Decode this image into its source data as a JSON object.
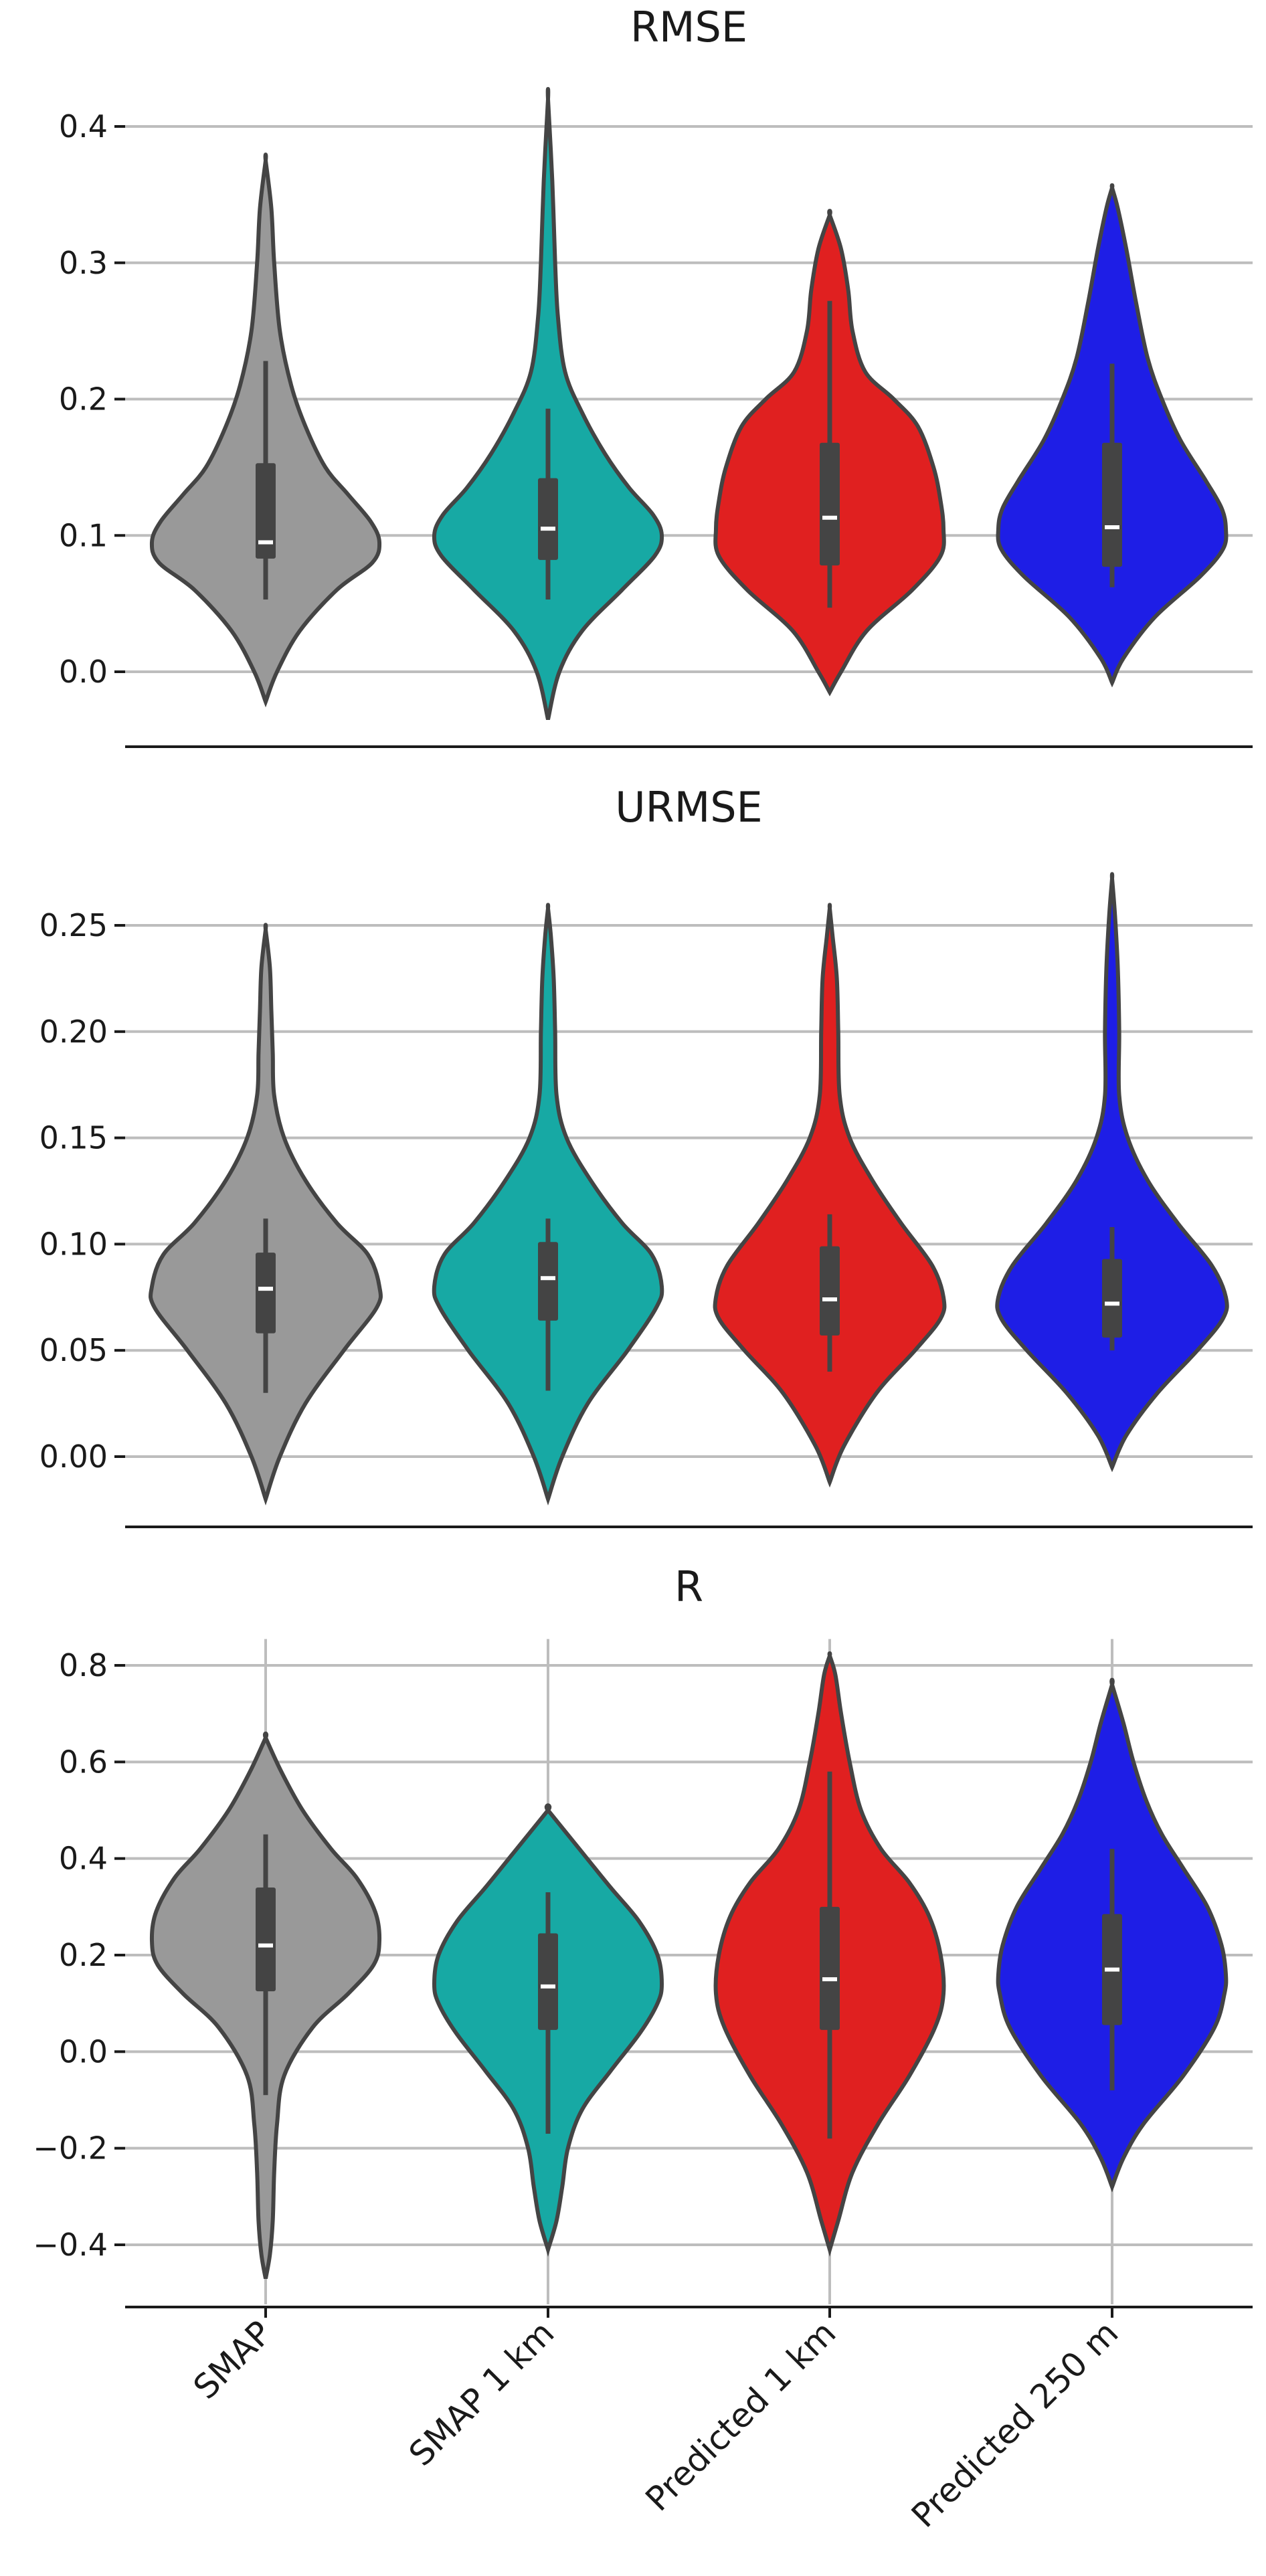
{
  "chart_data": [
    {
      "type": "violin",
      "title": "RMSE",
      "ylim": [
        -0.035,
        0.425
      ],
      "yticks": [
        0.0,
        0.1,
        0.2,
        0.3,
        0.4
      ],
      "ytick_labels": [
        "0.0",
        "0.1",
        "0.2",
        "0.3",
        "0.4"
      ],
      "grid": "horizontal",
      "categories": [
        "SMAP",
        "SMAP 1 km",
        "Predicted 1 km",
        "Predicted 250 m"
      ],
      "series": [
        {
          "color": "#999999",
          "stats": {
            "min": -0.022,
            "max": 0.375,
            "q1": 0.083,
            "median": 0.095,
            "q3": 0.153,
            "whisker_low": 0.053,
            "whisker_high": 0.228
          },
          "density": [
            [
              -0.022,
              0.0
            ],
            [
              0.0,
              0.08
            ],
            [
              0.03,
              0.24
            ],
            [
              0.06,
              0.5
            ],
            [
              0.08,
              0.75
            ],
            [
              0.095,
              0.8
            ],
            [
              0.11,
              0.74
            ],
            [
              0.13,
              0.58
            ],
            [
              0.15,
              0.42
            ],
            [
              0.18,
              0.28
            ],
            [
              0.21,
              0.18
            ],
            [
              0.25,
              0.1
            ],
            [
              0.3,
              0.06
            ],
            [
              0.34,
              0.04
            ],
            [
              0.375,
              0.0
            ]
          ]
        },
        {
          "color": "#17a9a4",
          "stats": {
            "min": -0.035,
            "max": 0.42,
            "q1": 0.082,
            "median": 0.105,
            "q3": 0.142,
            "whisker_low": 0.053,
            "whisker_high": 0.193
          },
          "density": [
            [
              -0.035,
              0.0
            ],
            [
              0.0,
              0.08
            ],
            [
              0.03,
              0.24
            ],
            [
              0.06,
              0.52
            ],
            [
              0.085,
              0.75
            ],
            [
              0.1,
              0.8
            ],
            [
              0.115,
              0.74
            ],
            [
              0.135,
              0.57
            ],
            [
              0.16,
              0.4
            ],
            [
              0.19,
              0.24
            ],
            [
              0.22,
              0.12
            ],
            [
              0.26,
              0.07
            ],
            [
              0.3,
              0.05
            ],
            [
              0.36,
              0.03
            ],
            [
              0.42,
              0.0
            ]
          ]
        },
        {
          "color": "#e02020",
          "stats": {
            "min": -0.015,
            "max": 0.335,
            "q1": 0.078,
            "median": 0.113,
            "q3": 0.168,
            "whisker_low": 0.047,
            "whisker_high": 0.272
          },
          "density": [
            [
              -0.015,
              0.0
            ],
            [
              0.0,
              0.08
            ],
            [
              0.03,
              0.26
            ],
            [
              0.06,
              0.58
            ],
            [
              0.085,
              0.78
            ],
            [
              0.105,
              0.8
            ],
            [
              0.125,
              0.78
            ],
            [
              0.15,
              0.73
            ],
            [
              0.18,
              0.62
            ],
            [
              0.2,
              0.45
            ],
            [
              0.22,
              0.25
            ],
            [
              0.25,
              0.16
            ],
            [
              0.28,
              0.13
            ],
            [
              0.31,
              0.08
            ],
            [
              0.335,
              0.0
            ]
          ]
        },
        {
          "color": "#1e1ee6",
          "stats": {
            "min": -0.008,
            "max": 0.355,
            "q1": 0.077,
            "median": 0.106,
            "q3": 0.168,
            "whisker_low": 0.062,
            "whisker_high": 0.226
          },
          "density": [
            [
              -0.008,
              0.0
            ],
            [
              0.01,
              0.08
            ],
            [
              0.04,
              0.3
            ],
            [
              0.07,
              0.62
            ],
            [
              0.09,
              0.78
            ],
            [
              0.105,
              0.8
            ],
            [
              0.12,
              0.77
            ],
            [
              0.14,
              0.66
            ],
            [
              0.17,
              0.48
            ],
            [
              0.2,
              0.35
            ],
            [
              0.23,
              0.25
            ],
            [
              0.27,
              0.17
            ],
            [
              0.31,
              0.1
            ],
            [
              0.34,
              0.04
            ],
            [
              0.355,
              0.0
            ]
          ]
        }
      ]
    },
    {
      "type": "violin",
      "title": "URMSE",
      "ylim": [
        -0.02,
        0.272
      ],
      "yticks": [
        0.0,
        0.05,
        0.1,
        0.15,
        0.2,
        0.25
      ],
      "ytick_labels": [
        "0.00",
        "0.05",
        "0.10",
        "0.15",
        "0.20",
        "0.25"
      ],
      "grid": "horizontal",
      "categories": [
        "SMAP",
        "SMAP 1 km",
        "Predicted 1 km",
        "Predicted 250 m"
      ],
      "series": [
        {
          "color": "#999999",
          "stats": {
            "min": -0.02,
            "max": 0.248,
            "q1": 0.058,
            "median": 0.079,
            "q3": 0.096,
            "whisker_low": 0.03,
            "whisker_high": 0.112
          },
          "density": [
            [
              -0.02,
              0.0
            ],
            [
              0.0,
              0.1
            ],
            [
              0.025,
              0.28
            ],
            [
              0.05,
              0.55
            ],
            [
              0.07,
              0.78
            ],
            [
              0.08,
              0.8
            ],
            [
              0.095,
              0.72
            ],
            [
              0.11,
              0.5
            ],
            [
              0.13,
              0.28
            ],
            [
              0.15,
              0.13
            ],
            [
              0.17,
              0.06
            ],
            [
              0.19,
              0.05
            ],
            [
              0.21,
              0.04
            ],
            [
              0.23,
              0.03
            ],
            [
              0.248,
              0.0
            ]
          ]
        },
        {
          "color": "#17a9a4",
          "stats": {
            "min": -0.02,
            "max": 0.258,
            "q1": 0.064,
            "median": 0.084,
            "q3": 0.101,
            "whisker_low": 0.031,
            "whisker_high": 0.112
          },
          "density": [
            [
              -0.02,
              0.0
            ],
            [
              0.0,
              0.1
            ],
            [
              0.025,
              0.28
            ],
            [
              0.05,
              0.56
            ],
            [
              0.07,
              0.76
            ],
            [
              0.08,
              0.8
            ],
            [
              0.095,
              0.73
            ],
            [
              0.11,
              0.52
            ],
            [
              0.13,
              0.3
            ],
            [
              0.15,
              0.13
            ],
            [
              0.17,
              0.06
            ],
            [
              0.2,
              0.05
            ],
            [
              0.225,
              0.04
            ],
            [
              0.245,
              0.02
            ],
            [
              0.258,
              0.0
            ]
          ]
        },
        {
          "color": "#e02020",
          "stats": {
            "min": -0.012,
            "max": 0.258,
            "q1": 0.057,
            "median": 0.074,
            "q3": 0.099,
            "whisker_low": 0.04,
            "whisker_high": 0.114
          },
          "density": [
            [
              -0.012,
              0.0
            ],
            [
              0.005,
              0.1
            ],
            [
              0.03,
              0.33
            ],
            [
              0.05,
              0.6
            ],
            [
              0.065,
              0.78
            ],
            [
              0.075,
              0.8
            ],
            [
              0.09,
              0.72
            ],
            [
              0.11,
              0.5
            ],
            [
              0.13,
              0.3
            ],
            [
              0.15,
              0.14
            ],
            [
              0.17,
              0.07
            ],
            [
              0.2,
              0.06
            ],
            [
              0.225,
              0.05
            ],
            [
              0.245,
              0.02
            ],
            [
              0.258,
              0.0
            ]
          ]
        },
        {
          "color": "#1e1ee6",
          "stats": {
            "min": -0.005,
            "max": 0.272,
            "q1": 0.056,
            "median": 0.072,
            "q3": 0.093,
            "whisker_low": 0.05,
            "whisker_high": 0.108
          },
          "density": [
            [
              -0.005,
              0.0
            ],
            [
              0.01,
              0.1
            ],
            [
              0.03,
              0.32
            ],
            [
              0.05,
              0.6
            ],
            [
              0.065,
              0.78
            ],
            [
              0.075,
              0.8
            ],
            [
              0.09,
              0.7
            ],
            [
              0.11,
              0.46
            ],
            [
              0.13,
              0.25
            ],
            [
              0.15,
              0.11
            ],
            [
              0.17,
              0.05
            ],
            [
              0.2,
              0.05
            ],
            [
              0.23,
              0.04
            ],
            [
              0.255,
              0.02
            ],
            [
              0.272,
              0.0
            ]
          ]
        }
      ]
    },
    {
      "type": "violin",
      "title": "R",
      "ylim": [
        -0.47,
        0.82
      ],
      "yticks": [
        -0.4,
        -0.2,
        0.0,
        0.2,
        0.4,
        0.6,
        0.8
      ],
      "ytick_labels": [
        "−0.4",
        "−0.2",
        "0.0",
        "0.2",
        "0.4",
        "0.6",
        "0.8"
      ],
      "grid": "both",
      "categories": [
        "SMAP",
        "SMAP 1 km",
        "Predicted 1 km",
        "Predicted 250 m"
      ],
      "category_labels": [
        "SMAP",
        "SMAP 1 km",
        "Predicted 1 km",
        "Predicted 250 m"
      ],
      "series": [
        {
          "color": "#999999",
          "stats": {
            "min": -0.47,
            "max": 0.65,
            "q1": 0.125,
            "median": 0.22,
            "q3": 0.34,
            "whisker_low": -0.09,
            "whisker_high": 0.45
          },
          "density": [
            [
              -0.47,
              0.0
            ],
            [
              -0.42,
              0.03
            ],
            [
              -0.35,
              0.05
            ],
            [
              -0.25,
              0.06
            ],
            [
              -0.15,
              0.08
            ],
            [
              -0.05,
              0.13
            ],
            [
              0.05,
              0.33
            ],
            [
              0.12,
              0.58
            ],
            [
              0.18,
              0.76
            ],
            [
              0.23,
              0.8
            ],
            [
              0.29,
              0.77
            ],
            [
              0.36,
              0.64
            ],
            [
              0.42,
              0.46
            ],
            [
              0.5,
              0.26
            ],
            [
              0.58,
              0.11
            ],
            [
              0.65,
              0.0
            ]
          ]
        },
        {
          "color": "#17a9a4",
          "stats": {
            "min": -0.41,
            "max": 0.5,
            "q1": 0.045,
            "median": 0.135,
            "q3": 0.245,
            "whisker_low": -0.17,
            "whisker_high": 0.33
          },
          "density": [
            [
              -0.41,
              0.0
            ],
            [
              -0.35,
              0.06
            ],
            [
              -0.28,
              0.1
            ],
            [
              -0.2,
              0.14
            ],
            [
              -0.12,
              0.24
            ],
            [
              -0.04,
              0.44
            ],
            [
              0.04,
              0.65
            ],
            [
              0.1,
              0.77
            ],
            [
              0.14,
              0.8
            ],
            [
              0.2,
              0.77
            ],
            [
              0.27,
              0.64
            ],
            [
              0.34,
              0.44
            ],
            [
              0.42,
              0.22
            ],
            [
              0.5,
              0.0
            ]
          ]
        },
        {
          "color": "#e02020",
          "stats": {
            "min": -0.41,
            "max": 0.82,
            "q1": 0.045,
            "median": 0.15,
            "q3": 0.3,
            "whisker_low": -0.18,
            "whisker_high": 0.58
          },
          "density": [
            [
              -0.41,
              0.0
            ],
            [
              -0.35,
              0.06
            ],
            [
              -0.25,
              0.16
            ],
            [
              -0.15,
              0.34
            ],
            [
              -0.05,
              0.56
            ],
            [
              0.05,
              0.74
            ],
            [
              0.12,
              0.8
            ],
            [
              0.2,
              0.78
            ],
            [
              0.28,
              0.7
            ],
            [
              0.35,
              0.56
            ],
            [
              0.42,
              0.36
            ],
            [
              0.5,
              0.22
            ],
            [
              0.6,
              0.14
            ],
            [
              0.7,
              0.08
            ],
            [
              0.78,
              0.04
            ],
            [
              0.82,
              0.0
            ]
          ]
        },
        {
          "color": "#1e1ee6",
          "stats": {
            "min": -0.28,
            "max": 0.76,
            "q1": 0.055,
            "median": 0.17,
            "q3": 0.285,
            "whisker_low": -0.08,
            "whisker_high": 0.42
          },
          "density": [
            [
              -0.28,
              0.0
            ],
            [
              -0.22,
              0.08
            ],
            [
              -0.15,
              0.22
            ],
            [
              -0.05,
              0.5
            ],
            [
              0.05,
              0.72
            ],
            [
              0.12,
              0.79
            ],
            [
              0.16,
              0.8
            ],
            [
              0.22,
              0.77
            ],
            [
              0.3,
              0.67
            ],
            [
              0.38,
              0.5
            ],
            [
              0.45,
              0.35
            ],
            [
              0.52,
              0.24
            ],
            [
              0.6,
              0.15
            ],
            [
              0.68,
              0.08
            ],
            [
              0.76,
              0.0
            ]
          ]
        }
      ]
    }
  ]
}
